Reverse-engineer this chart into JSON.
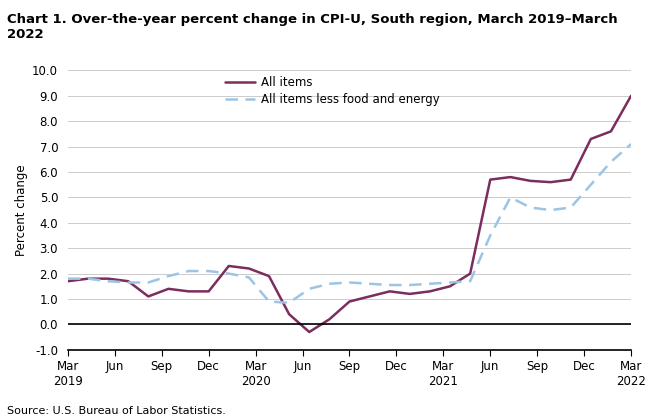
{
  "title": "Chart 1. Over-the-year percent change in CPI-U, South region, March 2019–March\n2022",
  "ylabel": "Percent change",
  "source": "Source: U.S. Bureau of Labor Statistics.",
  "ylim": [
    -1.0,
    10.0
  ],
  "yticks": [
    -1.0,
    0.0,
    1.0,
    2.0,
    3.0,
    4.0,
    5.0,
    6.0,
    7.0,
    8.0,
    9.0,
    10.0
  ],
  "xtick_labels": [
    "Mar\n2019",
    "Jun",
    "Sep",
    "Dec",
    "Mar\n2020",
    "Jun",
    "Sep",
    "Dec",
    "Mar\n2021",
    "Jun",
    "Sep",
    "Dec",
    "Mar\n2022"
  ],
  "xtick_positions": [
    0,
    3,
    6,
    9,
    12,
    15,
    18,
    21,
    24,
    27,
    30,
    33,
    36
  ],
  "all_items": [
    1.7,
    1.8,
    1.8,
    1.7,
    1.1,
    1.4,
    1.3,
    1.3,
    2.3,
    2.2,
    1.9,
    0.4,
    -0.3,
    0.2,
    0.9,
    1.1,
    1.3,
    1.2,
    1.3,
    1.5,
    2.0,
    5.7,
    5.8,
    5.65,
    5.6,
    5.7,
    7.3,
    7.6,
    9.0
  ],
  "all_items_less": [
    1.8,
    1.8,
    1.7,
    1.65,
    1.65,
    1.9,
    2.1,
    2.1,
    2.0,
    1.85,
    0.9,
    0.85,
    1.4,
    1.6,
    1.65,
    1.6,
    1.55,
    1.55,
    1.6,
    1.65,
    1.7,
    3.5,
    5.0,
    4.6,
    4.5,
    4.6,
    5.5,
    6.4,
    7.1
  ],
  "all_items_color": "#7B2D5E",
  "all_items_less_color": "#9CC4E4",
  "line_width": 1.8,
  "background_color": "#ffffff",
  "grid_color": "#cccccc"
}
